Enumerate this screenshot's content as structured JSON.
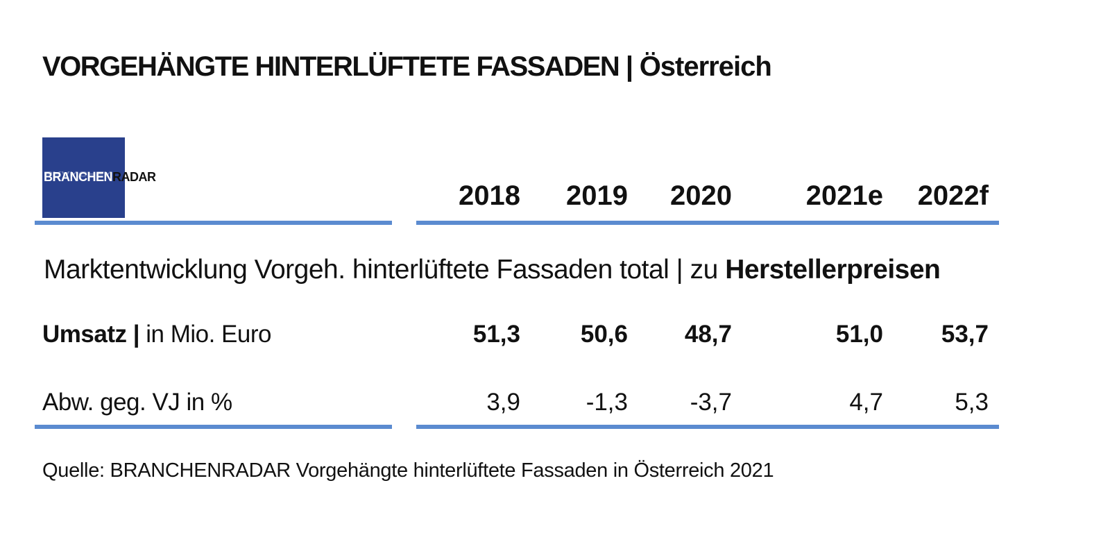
{
  "title": {
    "main": "VORGEHÄNGTE HINTERLÜFTETE FASSADEN |",
    "sub": " Österreich"
  },
  "logo": {
    "part1": "BRANCHEN",
    "part2": "RADAR",
    "colors": {
      "box": "#29408c",
      "part1": "#ffffff",
      "part2": "#111111"
    }
  },
  "accent_color": "#5b8bd0",
  "chart_data": {
    "type": "table",
    "title": "VORGEHÄNGTE HINTERLÜFTETE FASSADEN | Österreich",
    "columns": [
      "2018",
      "2019",
      "2020",
      "2021e",
      "2022f"
    ],
    "section_title": {
      "prefix": "Marktentwicklung Vorgeh. hinterlüftete Fassaden total | zu ",
      "emphasis": "Herstellerpreisen"
    },
    "rows": [
      {
        "label_bold": "Umsatz |",
        "label_rest": " in Mio. Euro",
        "values": [
          "51,3",
          "50,6",
          "48,7",
          "51,0",
          "53,7"
        ],
        "numeric": [
          51.3,
          50.6,
          48.7,
          51.0,
          53.7
        ],
        "unit": "Mio. Euro"
      },
      {
        "label_bold": "",
        "label_rest": "Abw. geg. VJ in %",
        "values": [
          "3,9",
          "-1,3",
          "-3,7",
          "4,7",
          "5,3"
        ],
        "numeric": [
          3.9,
          -1.3,
          -3.7,
          4.7,
          5.3
        ],
        "unit": "%"
      }
    ],
    "source": "Quelle: BRANCHENRADAR Vorgehängte hinterlüftete Fassaden in Österreich 2021"
  }
}
